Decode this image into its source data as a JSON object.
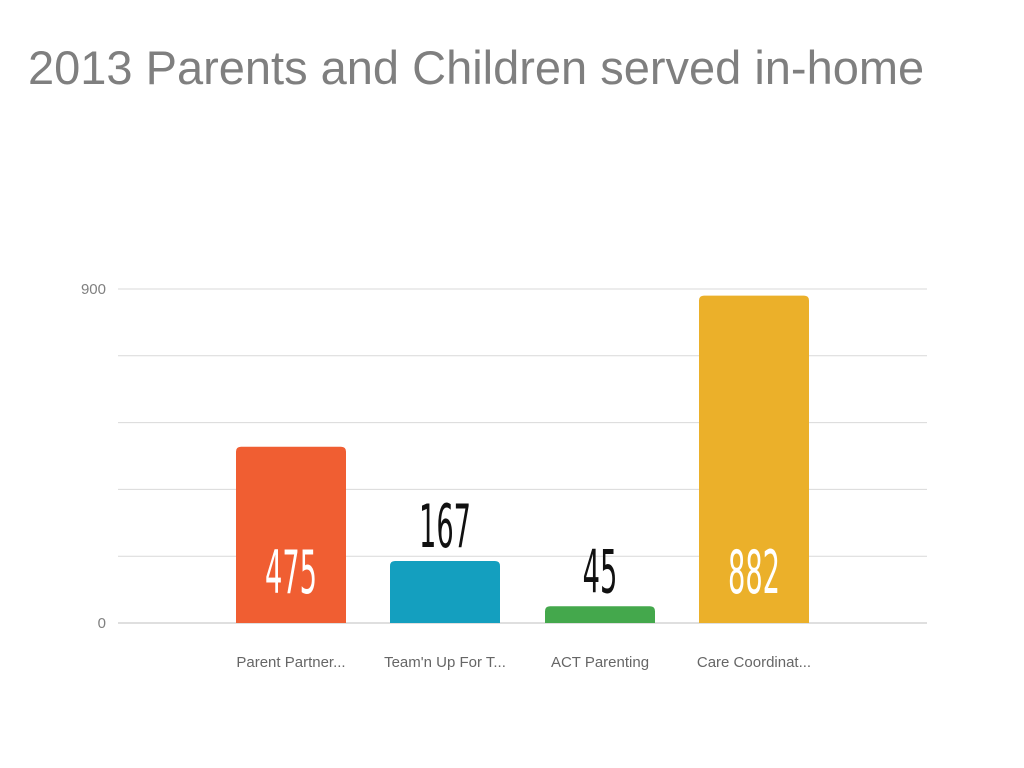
{
  "page": {
    "title": "2013 Parents and Children served in-home"
  },
  "chart_data": {
    "type": "bar",
    "title": "2013 Parents and Children served in-home",
    "xlabel": "",
    "ylabel": "",
    "ylim": [
      0,
      900
    ],
    "yticks": [
      0,
      180,
      360,
      540,
      720,
      900
    ],
    "ytick_labels": [
      "0",
      "",
      "",
      "",
      "",
      "900"
    ],
    "grid": true,
    "legend": "none",
    "categories": [
      "Parent Partner...",
      "Team'n Up For T...",
      "ACT Parenting",
      "Care Coordinat..."
    ],
    "values": [
      475,
      167,
      45,
      882
    ],
    "data_labels": [
      "475",
      "167",
      "45",
      "882"
    ],
    "label_positions": [
      "inside",
      "above",
      "above",
      "inside"
    ],
    "colors": [
      "#f05e32",
      "#149fbf",
      "#44a84c",
      "#ebb02a"
    ],
    "label_colors": [
      "#ffffff",
      "#111111",
      "#111111",
      "#ffffff"
    ],
    "gridline_color": "#d9d9d9"
  }
}
